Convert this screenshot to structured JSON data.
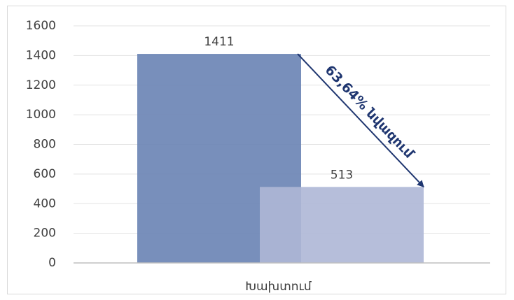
{
  "chart_data": {
    "type": "bar",
    "categories": [
      "Խախտում"
    ],
    "series": [
      {
        "color": "#6c85b5",
        "values": [
          1411
        ]
      },
      {
        "color": "#aeb7d6",
        "values": [
          513
        ]
      }
    ],
    "ylim": [
      0,
      1600
    ],
    "yticks": [
      0,
      200,
      400,
      600,
      800,
      1000,
      1200,
      1400,
      1600
    ],
    "grid": true,
    "annotation": "63,64% նվազում",
    "annotation_color": "#1f3670"
  }
}
